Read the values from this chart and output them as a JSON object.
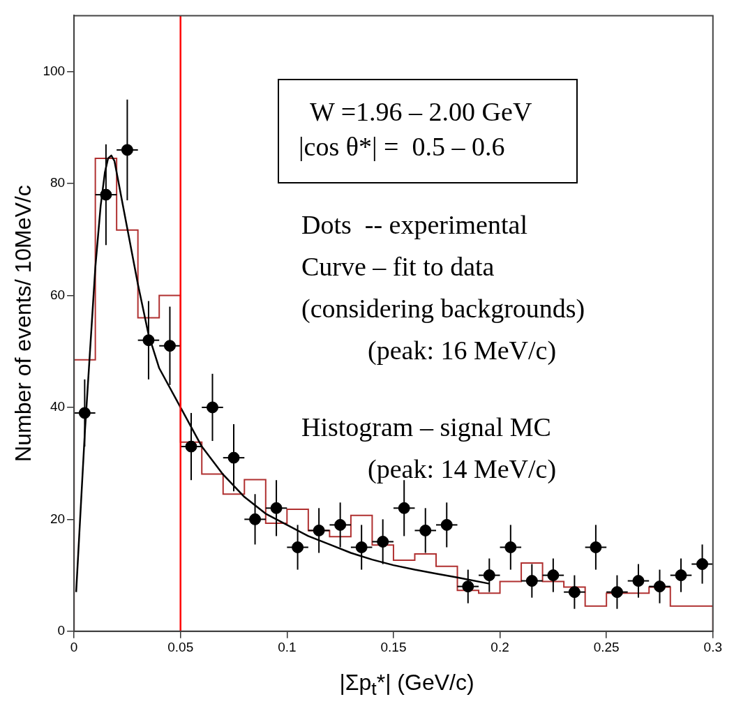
{
  "chart_data": {
    "type": "scatter",
    "xlabel": "|Σp$_{t}$*| (GeV/c)",
    "ylabel": "Number of events/ 10MeV/c",
    "xlim": [
      0,
      0.3
    ],
    "xticks": [
      0,
      0.05,
      0.1,
      0.15,
      0.2,
      0.25,
      0.3
    ],
    "ylim": [
      0,
      110
    ],
    "yticks": [
      0,
      20,
      40,
      60,
      80,
      100
    ],
    "grid": false,
    "legend": false,
    "series": [
      {
        "type": "histogram",
        "color": "#b03030",
        "bins": [
          0,
          0.01,
          0.02,
          0.03,
          0.04,
          0.05,
          0.06,
          0.07,
          0.08,
          0.09,
          0.1,
          0.11,
          0.12,
          0.13,
          0.14,
          0.15,
          0.16,
          0.17,
          0.18,
          0.19,
          0.2,
          0.21,
          0.22,
          0.23,
          0.24,
          0.25,
          0.26,
          0.27,
          0.28,
          0.29,
          0.3
        ],
        "values": [
          48.5,
          84.5,
          71.7,
          56,
          60,
          33.8,
          28.1,
          24.5,
          27.1,
          19.3,
          21.8,
          18,
          16.9,
          20.7,
          15.4,
          12.7,
          13.8,
          11.6,
          7.3,
          6.8,
          8.9,
          12.2,
          8.9,
          7.9,
          4.5,
          6.8,
          6.8,
          7.9,
          4.5,
          4.5
        ]
      },
      {
        "type": "scatter",
        "color": "#000000",
        "marker": "circle",
        "x": [
          0.005,
          0.015,
          0.025,
          0.035,
          0.045,
          0.055,
          0.065,
          0.075,
          0.085,
          0.095,
          0.105,
          0.115,
          0.125,
          0.135,
          0.145,
          0.155,
          0.165,
          0.175,
          0.185,
          0.195,
          0.205,
          0.215,
          0.225,
          0.235,
          0.245,
          0.255,
          0.265,
          0.275,
          0.285,
          0.295
        ],
        "values": [
          39,
          78,
          86,
          52,
          51,
          33,
          40,
          31,
          20,
          22,
          15,
          18,
          19,
          15,
          16,
          22,
          18,
          19,
          8,
          10,
          15,
          9,
          10,
          7,
          15,
          7,
          9,
          8,
          10,
          12
        ],
        "errors": [
          6,
          9,
          9,
          7,
          7,
          6,
          6,
          6,
          4.5,
          5,
          4,
          4,
          4,
          4,
          4,
          5,
          4,
          4,
          3,
          3,
          4,
          3,
          3,
          3,
          4,
          3,
          3,
          3,
          3,
          3.5
        ],
        "xerrors": [
          0.005,
          0.005,
          0.005,
          0.005,
          0.005,
          0.005,
          0.005,
          0.005,
          0.005,
          0.005,
          0.005,
          0.005,
          0.005,
          0.005,
          0.005,
          0.005,
          0.005,
          0.005,
          0.005,
          0.005,
          0.005,
          0.005,
          0.005,
          0.005,
          0.005,
          0.005,
          0.005,
          0.005,
          0.005,
          0.005
        ]
      },
      {
        "type": "line",
        "color": "#000000",
        "marker": "none",
        "line_style": "solid",
        "x": [
          0.001,
          0.005,
          0.01,
          0.0125,
          0.0145,
          0.016,
          0.0175,
          0.019,
          0.021,
          0.023,
          0.025,
          0.03,
          0.035,
          0.04,
          0.05,
          0.06,
          0.07,
          0.08,
          0.09,
          0.1,
          0.11,
          0.12,
          0.13,
          0.14,
          0.15,
          0.16,
          0.17,
          0.18,
          0.195
        ],
        "values": [
          7,
          35,
          65,
          76,
          82,
          84.5,
          85,
          84,
          80,
          76,
          72,
          62,
          53,
          47,
          40,
          33,
          28,
          24,
          21,
          19,
          17,
          15.5,
          14,
          12.8,
          11.8,
          11,
          10.3,
          9.6,
          8.5
        ]
      }
    ],
    "ref_lines": [
      {
        "axis": "x",
        "value": 0.05,
        "color": "#ff0000",
        "line_style": "solid"
      }
    ],
    "annotations": [
      "W =1.96 – 2.00 GeV",
      "|cos θ*| =  0.5 – 0.6",
      "Dots  -- experimental",
      "Curve – fit to data",
      "(considering backgrounds)",
      "(peak: 16 MeV/c)",
      "Histogram – signal MC",
      "(peak: 14 MeV/c)"
    ]
  }
}
